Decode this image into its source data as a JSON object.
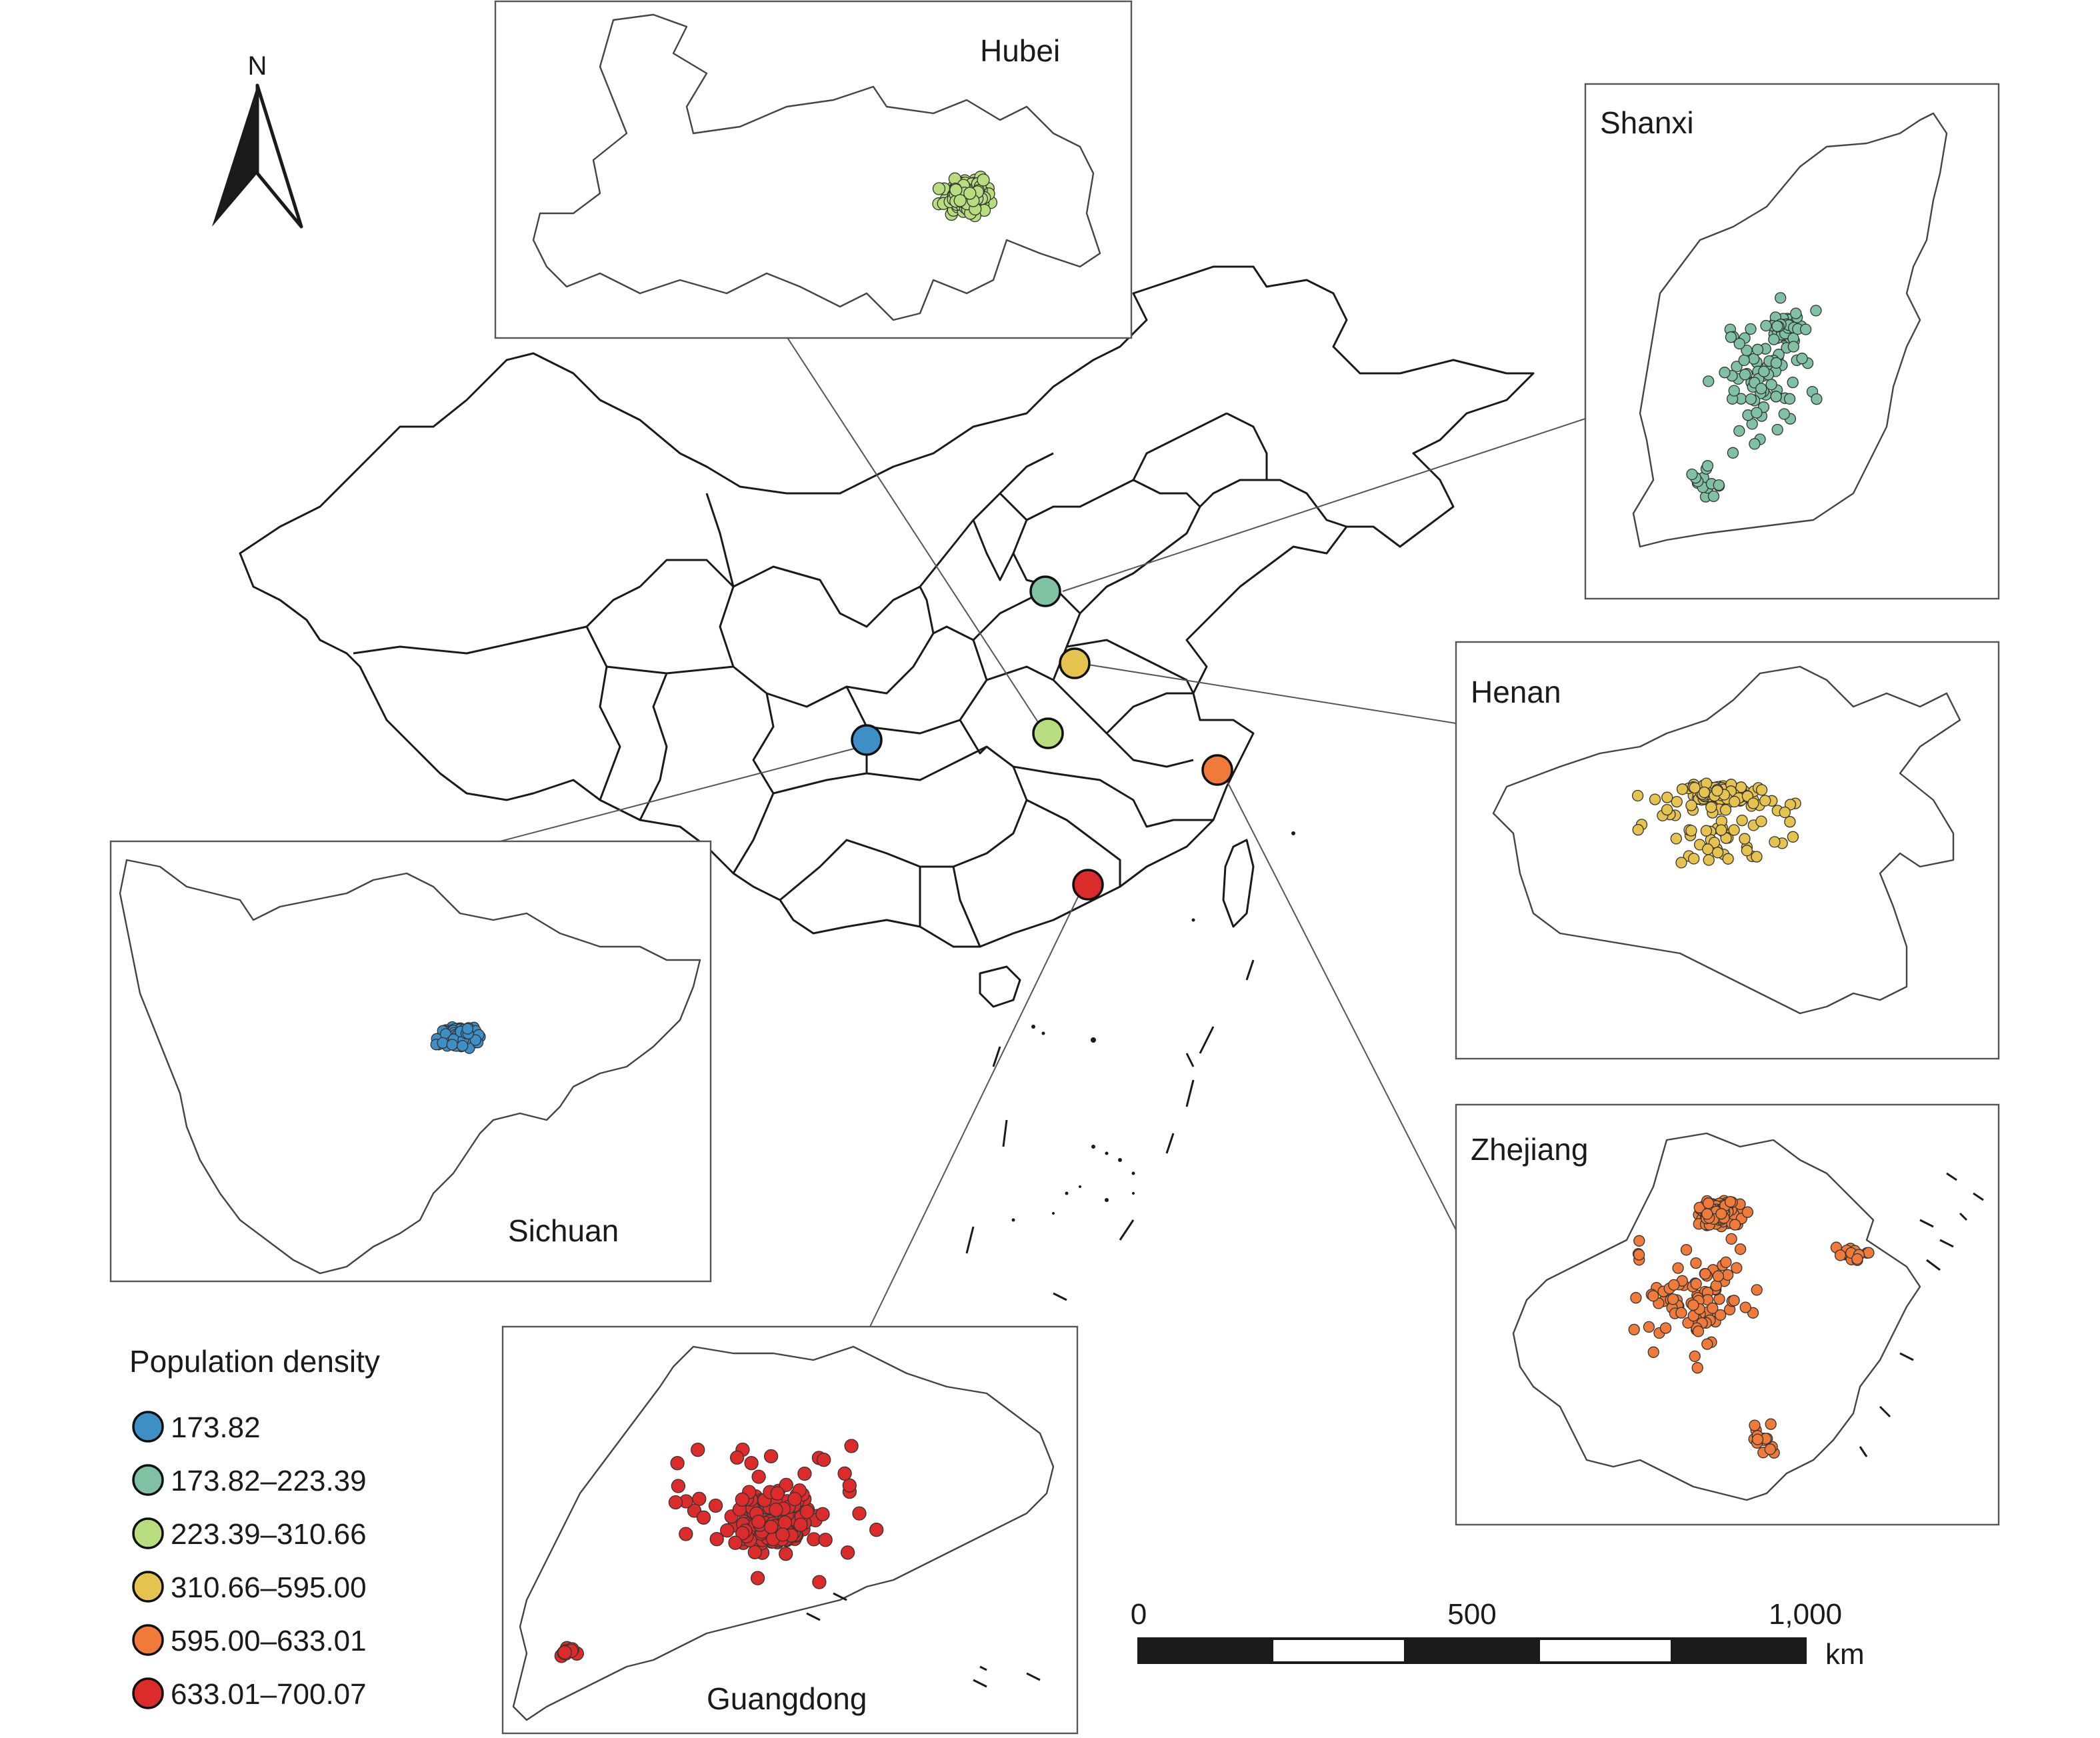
{
  "north_arrow": {
    "letter": "N"
  },
  "legend": {
    "title": "Population density",
    "items": [
      {
        "label": "173.82",
        "color": "#3d8fc6"
      },
      {
        "label": "173.82–223.39",
        "color": "#7fc1a2"
      },
      {
        "label": "223.39–310.66",
        "color": "#b7dd7e"
      },
      {
        "label": "310.66–595.00",
        "color": "#e6c24e"
      },
      {
        "label": "595.00–633.01",
        "color": "#ef7a3a"
      },
      {
        "label": "633.01–700.07",
        "color": "#dc2b2b"
      }
    ]
  },
  "scale_bar": {
    "ticks": [
      "0",
      "500",
      "1,000"
    ],
    "unit": "km"
  },
  "insets": [
    {
      "id": "hubei",
      "name": "Hubei",
      "color": "#b7dd7e"
    },
    {
      "id": "shanxi",
      "name": "Shanxi",
      "color": "#7fc1a2"
    },
    {
      "id": "henan",
      "name": "Henan",
      "color": "#e6c24e"
    },
    {
      "id": "zhejiang",
      "name": "Zhejiang",
      "color": "#ef7a3a"
    },
    {
      "id": "sichuan",
      "name": "Sichuan",
      "color": "#3d8fc6"
    },
    {
      "id": "guangdong",
      "name": "Guangdong",
      "color": "#dc2b2b"
    }
  ]
}
